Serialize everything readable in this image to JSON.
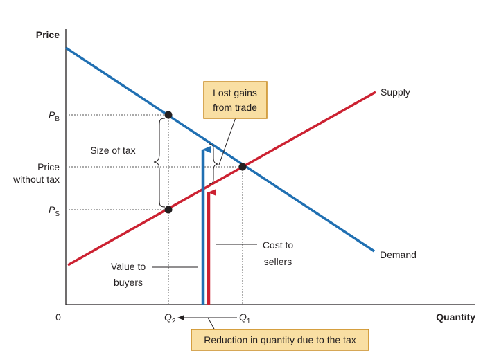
{
  "axes": {
    "y_label": "Price",
    "x_label": "Quantity",
    "origin": "0"
  },
  "curves": {
    "supply_label": "Supply",
    "demand_label": "Demand",
    "supply_color": "#cc2131",
    "demand_color": "#1f6fb2"
  },
  "price_ticks": {
    "pb_main": "P",
    "pb_sub": "B",
    "ps_main": "P",
    "ps_sub": "S",
    "no_tax_line1": "Price",
    "no_tax_line2": "without tax"
  },
  "quantity_ticks": {
    "q2_main": "Q",
    "q2_sub": "2",
    "q1_main": "Q",
    "q1_sub": "1"
  },
  "annotations": {
    "size_of_tax": "Size of tax",
    "lost_gains_line1": "Lost gains",
    "lost_gains_line2": "from trade",
    "cost_line1": "Cost to",
    "cost_line2": "sellers",
    "value_line1": "Value to",
    "value_line2": "buyers",
    "reduction": "Reduction in quantity due to the tax",
    "callout_fill": "#f9dfa3",
    "callout_border": "#c98a1e"
  }
}
